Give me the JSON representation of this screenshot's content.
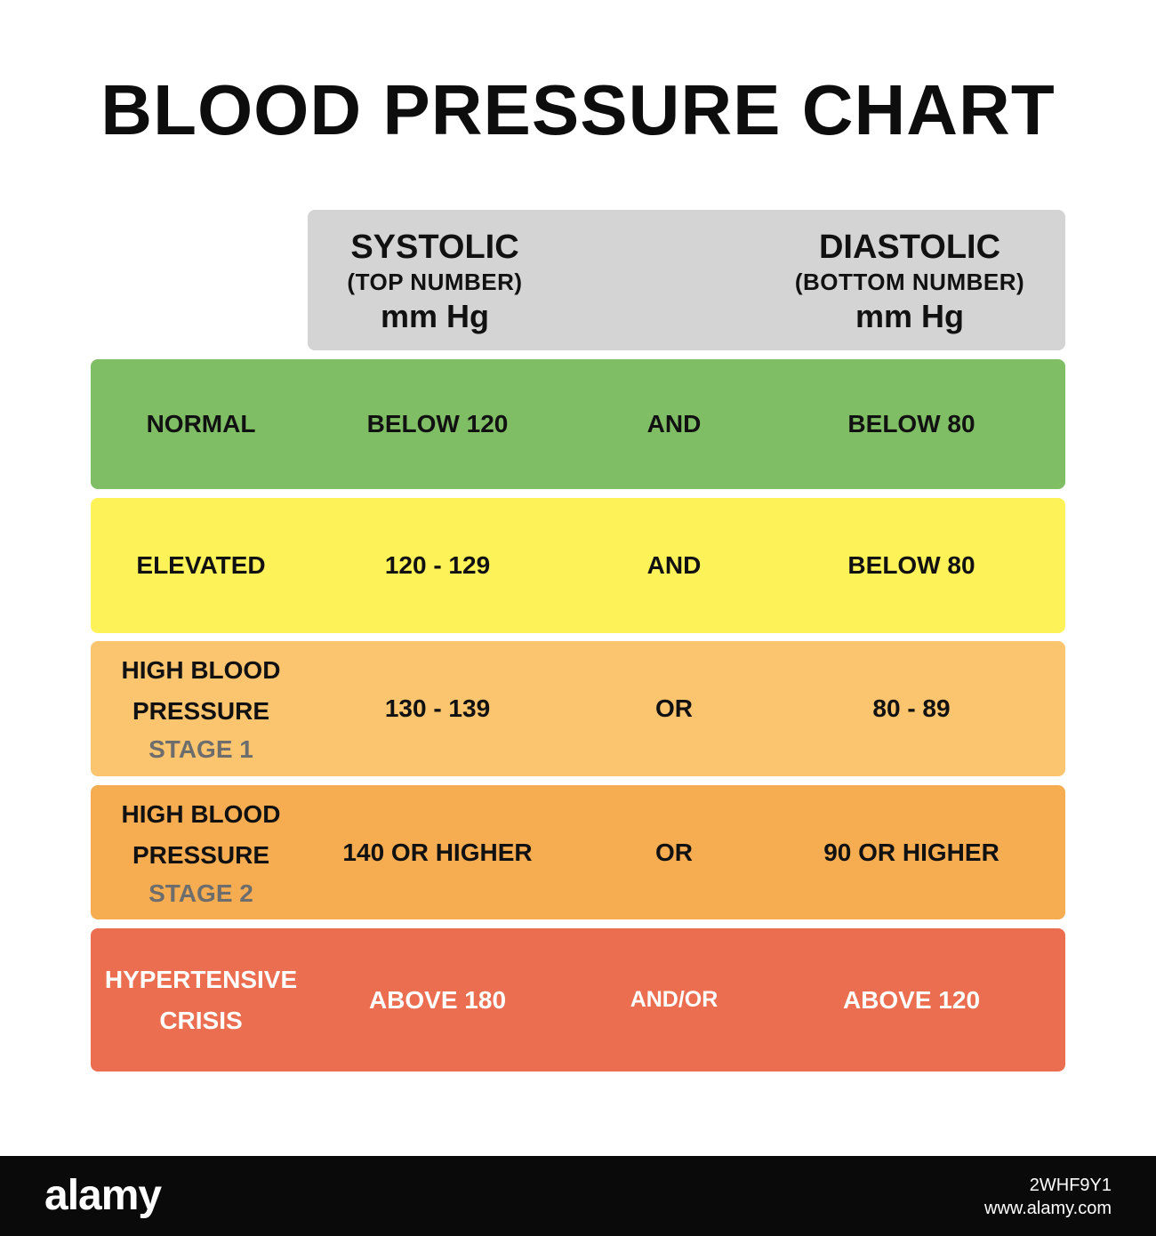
{
  "chart_data": {
    "type": "table",
    "title": "BLOOD PRESSURE CHART",
    "columns": [
      {
        "name": "SYSTOLIC",
        "note": "(TOP NUMBER)",
        "unit": "mm Hg"
      },
      {
        "name": "DIASTOLIC",
        "note": "(BOTTOM NUMBER)",
        "unit": "mm Hg"
      }
    ],
    "rows": [
      {
        "category": [
          "NORMAL"
        ],
        "stage": "",
        "systolic": "BELOW 120",
        "operator": "AND",
        "diastolic": "BELOW 80",
        "color": "#7fbe65"
      },
      {
        "category": [
          "ELEVATED"
        ],
        "stage": "",
        "systolic": "120 - 129",
        "operator": "AND",
        "diastolic": "BELOW 80",
        "color": "#fdf258"
      },
      {
        "category": [
          "HIGH BLOOD",
          "PRESSURE"
        ],
        "stage": "STAGE 1",
        "systolic": "130 - 139",
        "operator": "OR",
        "diastolic": "80 - 89",
        "color": "#fac56e"
      },
      {
        "category": [
          "HIGH BLOOD",
          "PRESSURE"
        ],
        "stage": "STAGE 2",
        "systolic": "140 OR HIGHER",
        "operator": "OR",
        "diastolic": "90 OR HIGHER",
        "color": "#f6ad51"
      },
      {
        "category": [
          "HYPERTENSIVE",
          "CRISIS"
        ],
        "stage": "",
        "systolic": "ABOVE 180",
        "operator": "AND/OR",
        "diastolic": "ABOVE 120",
        "color": "#ec6e51"
      }
    ]
  },
  "footer": {
    "logo": "alamy",
    "image_id": "2WHF9Y1",
    "site": "www.alamy.com"
  }
}
